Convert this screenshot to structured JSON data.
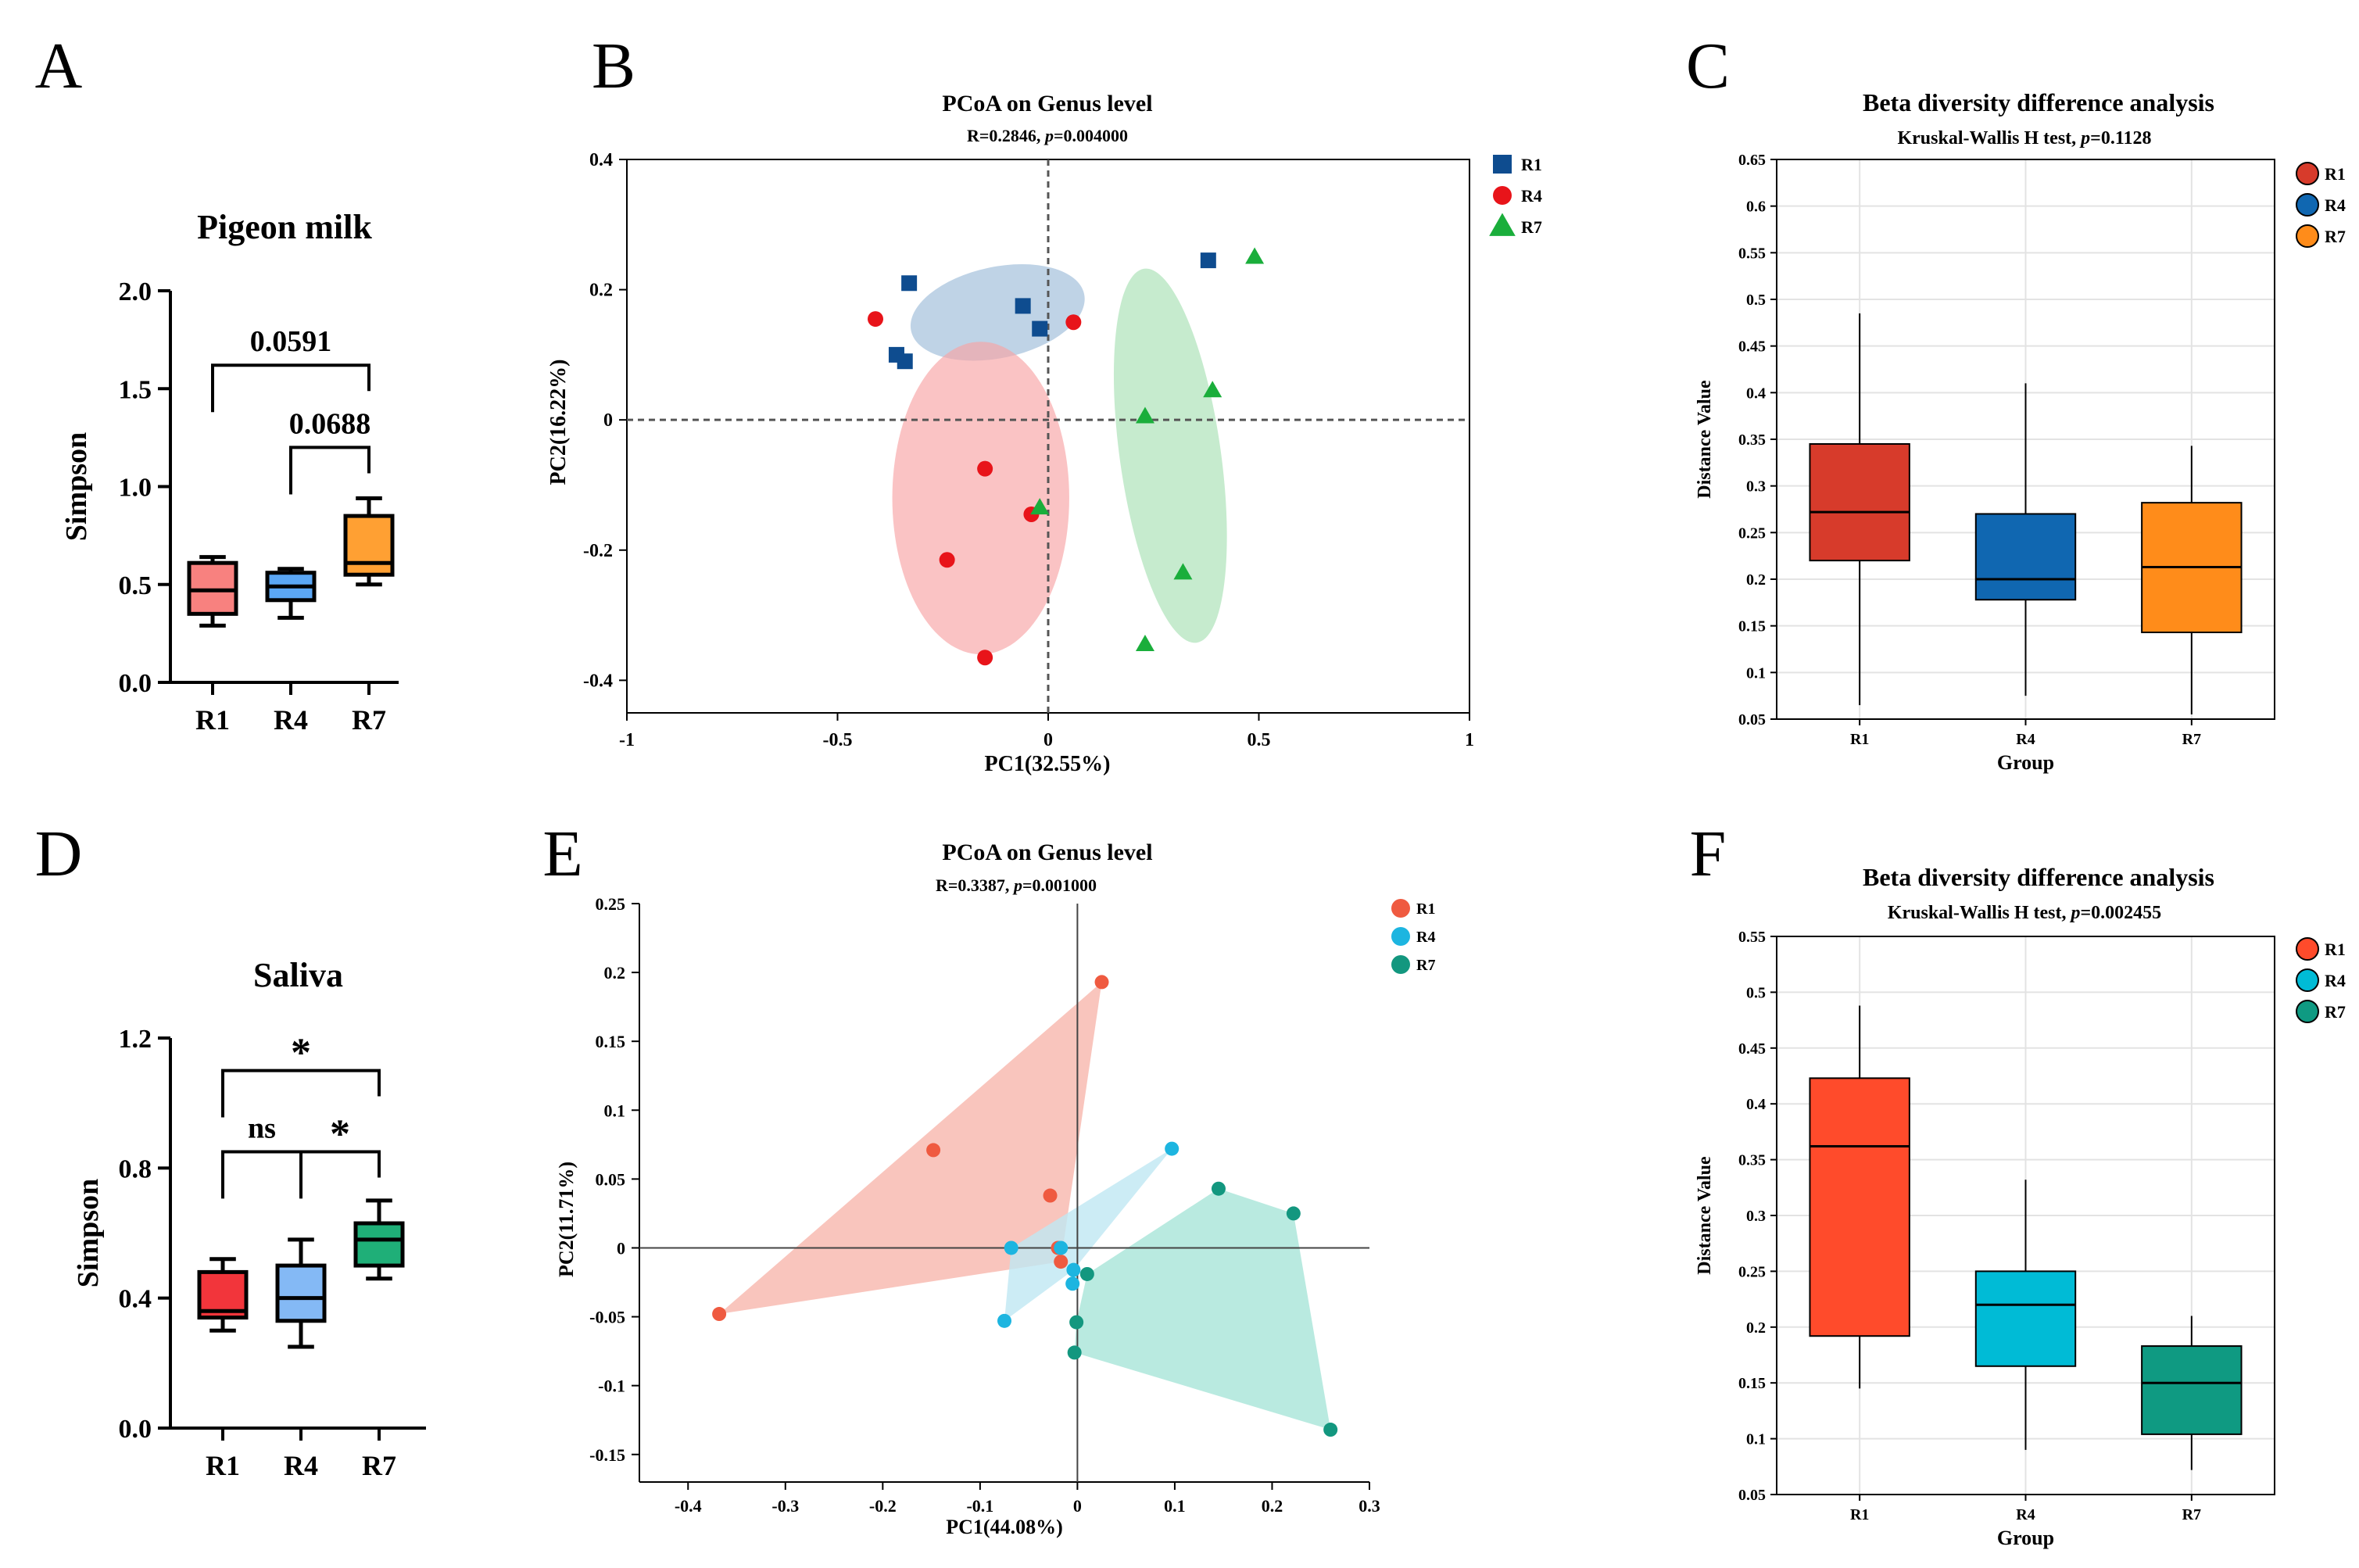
{
  "panels": {
    "A": {
      "letter": "A",
      "chart_data": {
        "type": "box",
        "title": "Pigeon milk",
        "ylabel": "Simpson",
        "categories": [
          "R1",
          "R4",
          "R7"
        ],
        "ylim": [
          0,
          2.0
        ],
        "yticks": [
          "0.0",
          "0.5",
          "1.0",
          "1.5",
          "2.0"
        ],
        "ytick_values": [
          0,
          0.5,
          1.0,
          1.5,
          2.0
        ],
        "colors": [
          "#F8817F",
          "#5BA7F5",
          "#FFA033"
        ],
        "boxes": [
          {
            "min": 0.29,
            "q1": 0.35,
            "median": 0.47,
            "q3": 0.61,
            "max": 0.64
          },
          {
            "min": 0.33,
            "q1": 0.42,
            "median": 0.49,
            "q3": 0.56,
            "max": 0.58
          },
          {
            "min": 0.5,
            "q1": 0.55,
            "median": 0.61,
            "q3": 0.85,
            "max": 0.94
          }
        ],
        "annotations": [
          {
            "from": 0,
            "to": 2,
            "level": 1.62,
            "label": "0.0591"
          },
          {
            "from": 1,
            "to": 2,
            "level": 1.2,
            "label": "0.0688"
          }
        ]
      }
    },
    "B": {
      "letter": "B",
      "chart_data": {
        "type": "scatter",
        "title": "PCoA on Genus level",
        "stat_r": "R=0.2846,",
        "stat_p_label": "p",
        "stat_p_value": "=0.004000",
        "xlabel": "PC1(32.55%)",
        "ylabel": "PC2(16.22%)",
        "xlim": [
          -1,
          1
        ],
        "ylim": [
          -0.45,
          0.4
        ],
        "xticks": [
          "-1",
          "-0.5",
          "0",
          "0.5",
          "1"
        ],
        "xtick_values": [
          -1,
          -0.5,
          0,
          0.5,
          1
        ],
        "yticks": [
          "-0.4",
          "-0.2",
          "0",
          "0.2",
          "0.4"
        ],
        "ytick_values": [
          -0.4,
          -0.2,
          0,
          0.2,
          0.4
        ],
        "series": [
          {
            "name": "R1",
            "marker": "square",
            "color": "#0E4C8F",
            "ellipse": {
              "cx": -0.12,
              "cy": 0.165,
              "rx": 0.21,
              "ry": 0.07,
              "angle_deg": 12,
              "color": "#9DBCD8"
            },
            "points": [
              [
                -0.33,
                0.21
              ],
              [
                -0.36,
                0.1
              ],
              [
                -0.34,
                0.09
              ],
              [
                -0.06,
                0.175
              ],
              [
                -0.02,
                0.14
              ],
              [
                0.38,
                0.245
              ]
            ]
          },
          {
            "name": "R4",
            "marker": "circle",
            "color": "#E8141A",
            "ellipse": {
              "cx": -0.16,
              "cy": -0.12,
              "rx": 0.21,
              "ry": 0.24,
              "angle_deg": 0,
              "color": "#F7A3A4"
            },
            "points": [
              [
                -0.41,
                0.155
              ],
              [
                0.06,
                0.15
              ],
              [
                -0.15,
                -0.075
              ],
              [
                -0.04,
                -0.145
              ],
              [
                -0.24,
                -0.215
              ],
              [
                -0.15,
                -0.365
              ]
            ]
          },
          {
            "name": "R7",
            "marker": "triangle",
            "color": "#1AAE3B",
            "ellipse": {
              "cx": 0.29,
              "cy": -0.055,
              "rx": 0.12,
              "ry": 0.29,
              "angle_deg": 8,
              "color": "#A8E0B4"
            },
            "points": [
              [
                0.49,
                0.25
              ],
              [
                0.23,
                0.005
              ],
              [
                0.39,
                0.045
              ],
              [
                -0.02,
                -0.135
              ],
              [
                0.32,
                -0.235
              ],
              [
                0.23,
                -0.345
              ]
            ]
          }
        ]
      }
    },
    "C": {
      "letter": "C",
      "chart_data": {
        "type": "box",
        "title": "Beta diversity difference analysis",
        "stat_test": "Kruskal-Wallis H test,",
        "stat_p_label": "p",
        "stat_p_value": "=0.1128",
        "xlabel": "Group",
        "ylabel": "Distance Value",
        "categories": [
          "R1",
          "R4",
          "R7"
        ],
        "ylim": [
          0.05,
          0.65
        ],
        "yticks": [
          "0.05",
          "0.1",
          "0.15",
          "0.2",
          "0.25",
          "0.3",
          "0.35",
          "0.4",
          "0.45",
          "0.5",
          "0.55",
          "0.6",
          "0.65"
        ],
        "ytick_values": [
          0.05,
          0.1,
          0.15,
          0.2,
          0.25,
          0.3,
          0.35,
          0.4,
          0.45,
          0.5,
          0.55,
          0.6,
          0.65
        ],
        "colors": [
          "#D73B2B",
          "#1067B1",
          "#FF8C1A"
        ],
        "boxes": [
          {
            "min": 0.065,
            "q1": 0.22,
            "median": 0.272,
            "q3": 0.345,
            "max": 0.485
          },
          {
            "min": 0.075,
            "q1": 0.178,
            "median": 0.2,
            "q3": 0.27,
            "max": 0.41
          },
          {
            "min": 0.055,
            "q1": 0.143,
            "median": 0.213,
            "q3": 0.282,
            "max": 0.343
          }
        ]
      }
    },
    "D": {
      "letter": "D",
      "chart_data": {
        "type": "box",
        "title": "Saliva",
        "ylabel": "Simpson",
        "categories": [
          "R1",
          "R4",
          "R7"
        ],
        "ylim": [
          0,
          1.2
        ],
        "yticks": [
          "0.0",
          "0.4",
          "0.8",
          "1.2"
        ],
        "ytick_values": [
          0,
          0.4,
          0.8,
          1.2
        ],
        "colors": [
          "#F2353B",
          "#84B9F5",
          "#1FAF78"
        ],
        "boxes": [
          {
            "min": 0.3,
            "q1": 0.34,
            "median": 0.36,
            "q3": 0.48,
            "max": 0.52
          },
          {
            "min": 0.25,
            "q1": 0.33,
            "median": 0.4,
            "q3": 0.5,
            "max": 0.58
          },
          {
            "min": 0.46,
            "q1": 0.5,
            "median": 0.58,
            "q3": 0.63,
            "max": 0.7
          }
        ],
        "annotations": [
          {
            "from": 0,
            "to": 2,
            "level": 1.1,
            "label": "*"
          },
          {
            "from": 0,
            "to": 1,
            "level": 0.85,
            "label": "ns"
          },
          {
            "from": 1,
            "to": 2,
            "level": 0.85,
            "label": "*"
          }
        ]
      }
    },
    "E": {
      "letter": "E",
      "chart_data": {
        "type": "scatter",
        "title": "PCoA on Genus level",
        "stat_r": "R=0.3387,",
        "stat_p_label": "p",
        "stat_p_value": "=0.001000",
        "xlabel": "PC1(44.08%)",
        "ylabel": "PC2(11.71%)",
        "xlim": [
          -0.45,
          0.3
        ],
        "ylim": [
          -0.17,
          0.25
        ],
        "xticks": [
          "-0.4",
          "-0.3",
          "-0.2",
          "-0.1",
          "0",
          "0.1",
          "0.2",
          "0.3"
        ],
        "xtick_values": [
          -0.4,
          -0.3,
          -0.2,
          -0.1,
          0,
          0.1,
          0.2,
          0.3
        ],
        "yticks": [
          "-0.15",
          "-0.1",
          "-0.05",
          "0",
          "0.05",
          "0.1",
          "0.15",
          "0.2",
          "0.25"
        ],
        "ytick_values": [
          -0.15,
          -0.1,
          -0.05,
          0,
          0.05,
          0.1,
          0.15,
          0.2,
          0.25
        ],
        "series": [
          {
            "name": "R1",
            "color": "#EF5A40",
            "hull_color": "#F7B7AC",
            "points": [
              [
                0.025,
                0.193
              ],
              [
                -0.148,
                0.071
              ],
              [
                -0.028,
                0.038
              ],
              [
                -0.02,
                0.0
              ],
              [
                -0.017,
                -0.01
              ],
              [
                -0.368,
                -0.048
              ]
            ],
            "hull": [
              [
                0.025,
                0.193
              ],
              [
                -0.368,
                -0.048
              ],
              [
                -0.017,
                -0.01
              ]
            ]
          },
          {
            "name": "R4",
            "color": "#1DB5E0",
            "hull_color": "#BFE7F3",
            "points": [
              [
                0.097,
                0.072
              ],
              [
                -0.068,
                0.0
              ],
              [
                -0.017,
                0.0
              ],
              [
                -0.004,
                -0.016
              ],
              [
                -0.005,
                -0.026
              ],
              [
                -0.075,
                -0.053
              ]
            ],
            "hull": [
              [
                0.097,
                0.072
              ],
              [
                -0.068,
                0.0
              ],
              [
                -0.075,
                -0.053
              ],
              [
                -0.004,
                -0.016
              ]
            ]
          },
          {
            "name": "R7",
            "color": "#13977F",
            "hull_color": "#A8E5D8",
            "points": [
              [
                0.145,
                0.043
              ],
              [
                0.222,
                0.025
              ],
              [
                0.01,
                -0.019
              ],
              [
                -0.001,
                -0.054
              ],
              [
                -0.003,
                -0.076
              ],
              [
                0.26,
                -0.132
              ]
            ],
            "hull": [
              [
                0.145,
                0.043
              ],
              [
                0.222,
                0.025
              ],
              [
                0.26,
                -0.132
              ],
              [
                -0.003,
                -0.076
              ],
              [
                -0.001,
                -0.054
              ],
              [
                0.01,
                -0.019
              ]
            ]
          }
        ]
      }
    },
    "F": {
      "letter": "F",
      "chart_data": {
        "type": "box",
        "title": "Beta diversity difference analysis",
        "stat_test": "Kruskal-Wallis H test,",
        "stat_p_label": "p",
        "stat_p_value": "=0.002455",
        "xlabel": "Group",
        "ylabel": "Distance Value",
        "categories": [
          "R1",
          "R4",
          "R7"
        ],
        "ylim": [
          0.05,
          0.55
        ],
        "yticks": [
          "0.05",
          "0.1",
          "0.15",
          "0.2",
          "0.25",
          "0.3",
          "0.35",
          "0.4",
          "0.45",
          "0.5",
          "0.55"
        ],
        "ytick_values": [
          0.05,
          0.1,
          0.15,
          0.2,
          0.25,
          0.3,
          0.35,
          0.4,
          0.45,
          0.5,
          0.55
        ],
        "colors": [
          "#FF4B2B",
          "#00BBD6",
          "#0F9A82"
        ],
        "boxes": [
          {
            "min": 0.145,
            "q1": 0.192,
            "median": 0.362,
            "q3": 0.423,
            "max": 0.488
          },
          {
            "min": 0.09,
            "q1": 0.165,
            "median": 0.22,
            "q3": 0.25,
            "max": 0.332
          },
          {
            "min": 0.072,
            "q1": 0.104,
            "median": 0.15,
            "q3": 0.183,
            "max": 0.21
          }
        ]
      }
    }
  }
}
